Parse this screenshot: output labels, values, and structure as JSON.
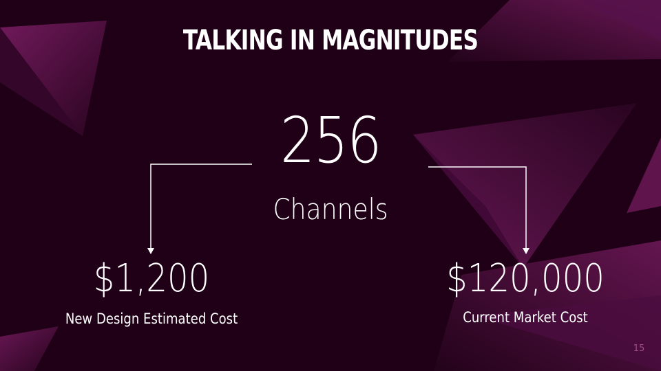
{
  "slide": {
    "title": "TALKING IN MAGNITUDES",
    "headline_value": "256",
    "headline_label": "Channels",
    "left": {
      "value": "$1,200",
      "caption": "New Design Estimated Cost"
    },
    "right": {
      "value": "$120,000",
      "caption": "Current Market Cost"
    },
    "page_number": "15"
  },
  "colors": {
    "background": "#1f0016",
    "accent_shape": "#5a1448",
    "text": "#ffffff",
    "page_number": "#a04f8a"
  }
}
